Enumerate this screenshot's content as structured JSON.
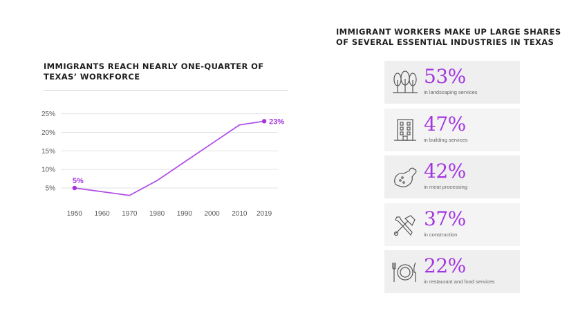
{
  "colors": {
    "accent": "#a335e0",
    "line": "#b04ee6",
    "grid": "#e3e3e3"
  },
  "left_title": "IMMIGRANTS REACH NEARLY ONE-QUARTER OF TEXAS’ WORKFORCE",
  "right_title": "IMMIGRANT WORKERS MAKE UP LARGE SHARES OF SEVERAL ESSENTIAL INDUSTRIES IN TEXAS",
  "chart_data": [
    {
      "type": "line",
      "title": "IMMIGRANTS REACH NEARLY ONE-QUARTER OF TEXAS’ WORKFORCE",
      "x": [
        1950,
        1960,
        1970,
        1980,
        1990,
        2000,
        2010,
        2019
      ],
      "y": [
        5,
        4,
        3,
        7,
        12,
        17,
        22,
        23
      ],
      "x_tick_labels": [
        "1950",
        "1960",
        "1970",
        "1980",
        "1990",
        "2000",
        "2010",
        "2019"
      ],
      "y_tick_values": [
        5,
        10,
        15,
        20,
        25
      ],
      "y_tick_labels": [
        "5%",
        "10%",
        "15%",
        "20%",
        "25%"
      ],
      "ylim": [
        0,
        25
      ],
      "grid": true,
      "legend": "none",
      "point_labels": [
        {
          "x": 1950,
          "text": "5%"
        },
        {
          "x": 2019,
          "text": "23%"
        }
      ]
    },
    {
      "type": "table",
      "title": "IMMIGRANT WORKERS MAKE UP LARGE SHARES OF SEVERAL ESSENTIAL INDUSTRIES IN TEXAS",
      "items": [
        {
          "value": "53%",
          "label": "in landscaping services",
          "icon": "trees-icon"
        },
        {
          "value": "47%",
          "label": "in building services",
          "icon": "building-icon"
        },
        {
          "value": "42%",
          "label": "in meat processing",
          "icon": "drumstick-icon"
        },
        {
          "value": "37%",
          "label": "in construction",
          "icon": "tools-icon"
        },
        {
          "value": "22%",
          "label": "in restaurant and food services",
          "icon": "plate-cutlery-icon"
        }
      ]
    }
  ]
}
